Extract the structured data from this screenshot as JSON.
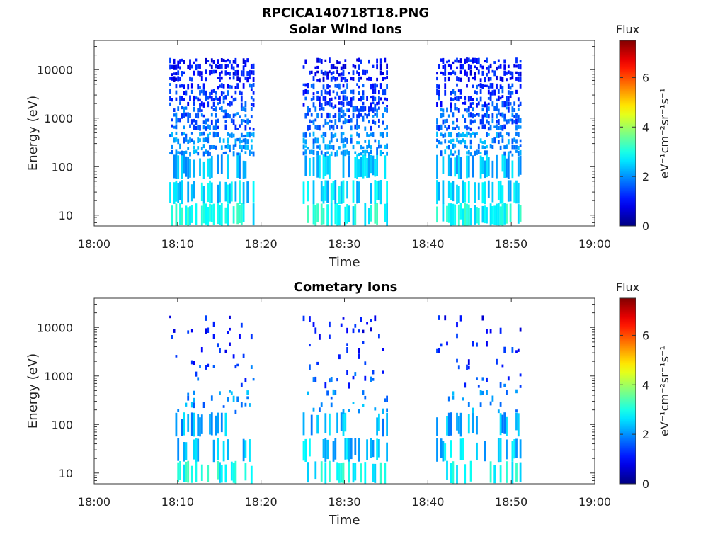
{
  "figure": {
    "file_title": "RPCICA140718T18.PNG"
  },
  "chart_data": [
    {
      "type": "heatmap",
      "title": "Solar Wind Ions",
      "xlabel": "Time",
      "ylabel": "Energy (eV)",
      "x_range": [
        "18:00",
        "19:00"
      ],
      "x_ticks": [
        "18:00",
        "18:10",
        "18:20",
        "18:30",
        "18:40",
        "18:50",
        "19:00"
      ],
      "y_scale": "log",
      "y_range": [
        6,
        40000
      ],
      "y_ticks": [
        "10",
        "100",
        "1000",
        "10000"
      ],
      "grid": false,
      "colorbar": {
        "title": "Flux",
        "unit_label": "eV⁻¹cm⁻²sr⁻¹s⁻¹",
        "range": [
          0,
          7.5
        ],
        "ticks": [
          "0",
          "2",
          "4",
          "6"
        ],
        "colormap": "jet"
      },
      "active_intervals": [
        {
          "start": "18:09",
          "end": "18:19"
        },
        {
          "start": "18:25",
          "end": "18:35"
        },
        {
          "start": "18:41",
          "end": "18:51"
        }
      ],
      "levels": [
        {
          "energy_eV": 10,
          "typical_flux": 2.9
        },
        {
          "energy_eV": 30,
          "typical_flux": 2.5
        },
        {
          "energy_eV": 100,
          "typical_flux": 2.3
        },
        {
          "energy_eV": 300,
          "typical_flux": 2.0
        },
        {
          "energy_eV": 1000,
          "typical_flux": 1.6
        },
        {
          "energy_eV": 3000,
          "typical_flux": 1.3
        },
        {
          "energy_eV": 10000,
          "typical_flux": 1.0
        }
      ]
    },
    {
      "type": "heatmap",
      "title": "Cometary Ions",
      "xlabel": "Time",
      "ylabel": "Energy (eV)",
      "x_range": [
        "18:00",
        "19:00"
      ],
      "x_ticks": [
        "18:00",
        "18:10",
        "18:20",
        "18:30",
        "18:40",
        "18:50",
        "19:00"
      ],
      "y_scale": "log",
      "y_range": [
        6,
        40000
      ],
      "y_ticks": [
        "10",
        "100",
        "1000",
        "10000"
      ],
      "grid": false,
      "colorbar": {
        "title": "Flux",
        "unit_label": "eV⁻¹cm⁻²sr⁻¹s⁻¹",
        "range": [
          0,
          7.5
        ],
        "ticks": [
          "0",
          "2",
          "4",
          "6"
        ],
        "colormap": "jet"
      },
      "active_intervals": [
        {
          "start": "18:09",
          "end": "18:19"
        },
        {
          "start": "18:25",
          "end": "18:35"
        },
        {
          "start": "18:41",
          "end": "18:51"
        }
      ],
      "levels": [
        {
          "energy_eV": 10,
          "typical_flux": 2.9
        },
        {
          "energy_eV": 30,
          "typical_flux": 2.4
        },
        {
          "energy_eV": 100,
          "typical_flux": 2.2
        },
        {
          "energy_eV": 300,
          "typical_flux": 2.0
        },
        {
          "energy_eV": 1000,
          "typical_flux": 1.5
        },
        {
          "energy_eV": 3000,
          "typical_flux": 1.2
        },
        {
          "energy_eV": 10000,
          "typical_flux": 1.0
        }
      ]
    }
  ]
}
